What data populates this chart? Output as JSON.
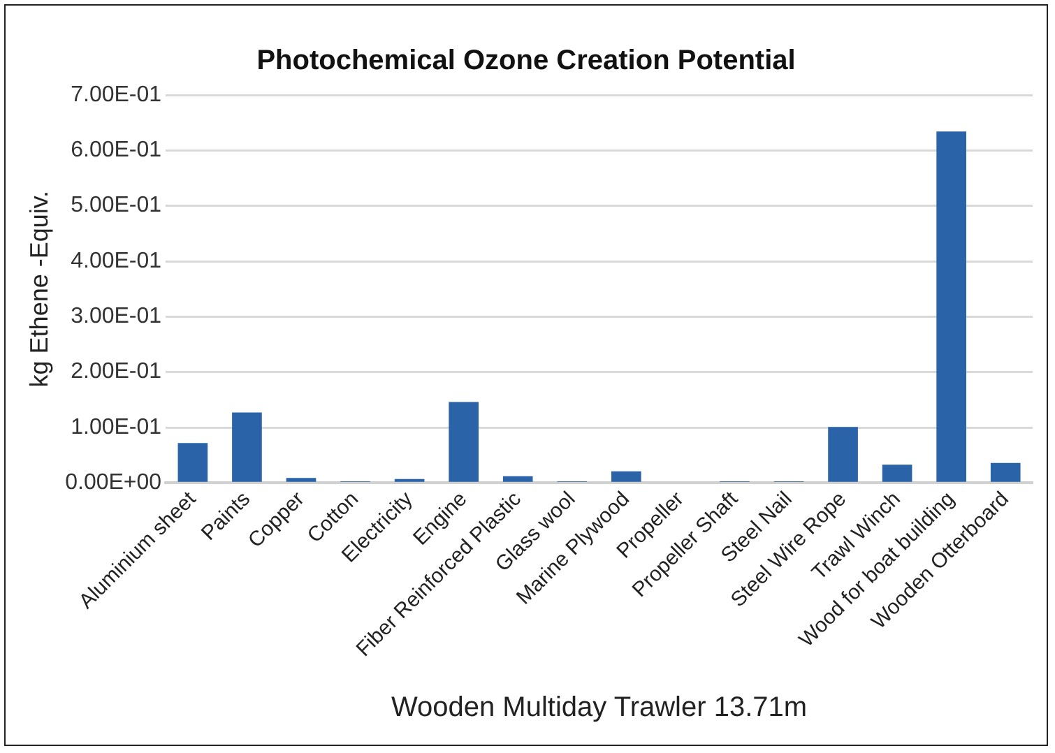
{
  "chart_data": {
    "type": "bar",
    "title": "Photochemical Ozone Creation Potential",
    "ylabel": "kg Ethene -Equiv.",
    "xlabel": "Wooden Multiday Trawler 13.71m",
    "categories": [
      "Aluminium sheet",
      "Paints",
      "Copper",
      "Cotton",
      "Electricity",
      "Engine",
      "Fiber Reinforced Plastic",
      "Glass wool",
      "Marine Plywood",
      "Propeller",
      "Propeller Shaft",
      "Steel Nail",
      "Steel Wire Rope",
      "Trawl Winch",
      "Wood for boat building",
      "Wooden Otterboard"
    ],
    "values": [
      0.072,
      0.127,
      0.009,
      0.003,
      0.007,
      0.146,
      0.012,
      0.003,
      0.021,
      0,
      0.003,
      0.003,
      0.101,
      0.033,
      0.634,
      0.036
    ],
    "color": "#2a63a8",
    "ylim": [
      0,
      0.7
    ],
    "yticks": [
      {
        "value": 0,
        "label": "0.00E+00"
      },
      {
        "value": 0.1,
        "label": "1.00E-01"
      },
      {
        "value": 0.2,
        "label": "2.00E-01"
      },
      {
        "value": 0.3,
        "label": "3.00E-01"
      },
      {
        "value": 0.4,
        "label": "4.00E-01"
      },
      {
        "value": 0.5,
        "label": "5.00E-01"
      },
      {
        "value": 0.6,
        "label": "6.00E-01"
      },
      {
        "value": 0.7,
        "label": "7.00E-01"
      }
    ],
    "grid": "y",
    "legend": false
  }
}
